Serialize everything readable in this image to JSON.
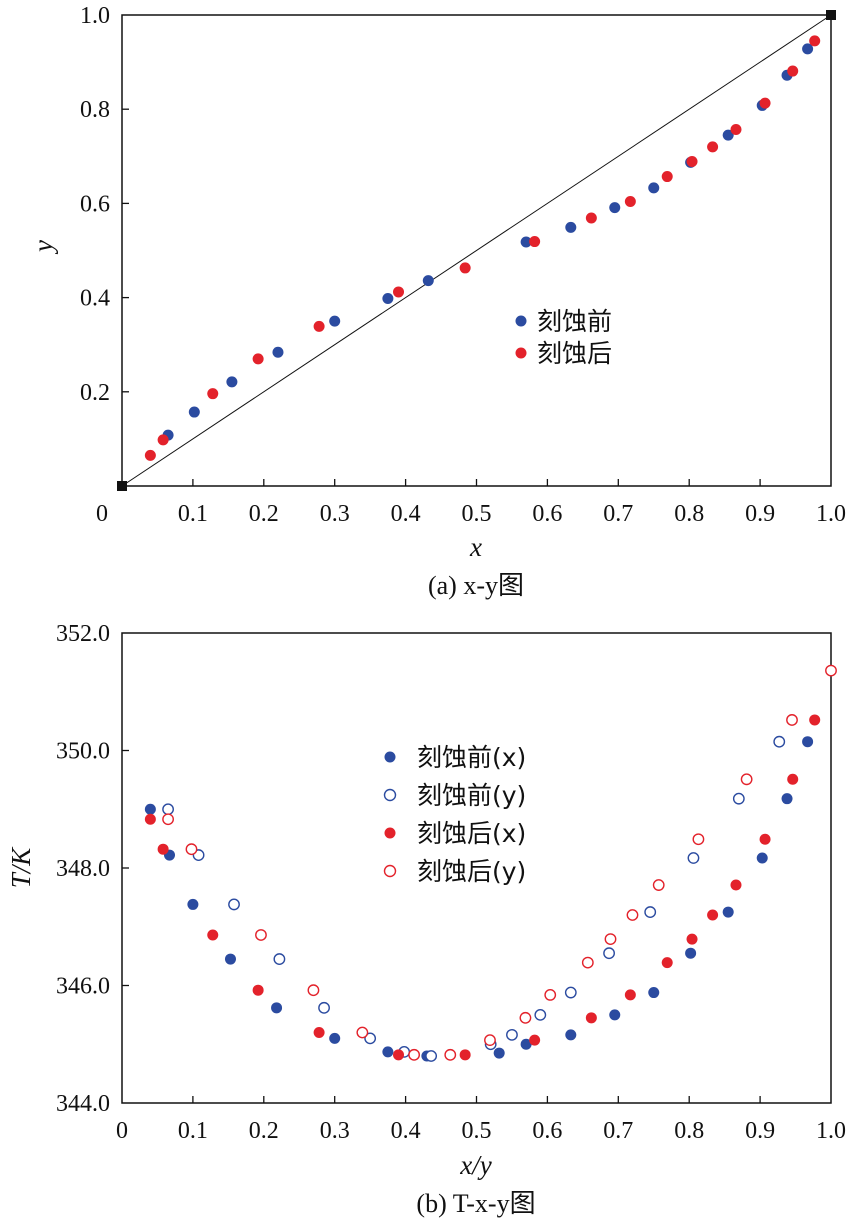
{
  "chart_data": [
    {
      "type": "scatter",
      "caption": "(a) x-y图",
      "xlabel": "x",
      "ylabel": "y",
      "xlim": [
        0,
        1
      ],
      "ylim": [
        0,
        1
      ],
      "xticks": [
        "0",
        "0.1",
        "0.2",
        "0.3",
        "0.4",
        "0.5",
        "0.6",
        "0.7",
        "0.8",
        "0.9",
        "1.0"
      ],
      "yticks": [
        "0.2",
        "0.4",
        "0.6",
        "0.8",
        "1.0"
      ],
      "legend_position": "center-right",
      "diagonal": [
        [
          0,
          0
        ],
        [
          1,
          1
        ]
      ],
      "series": [
        {
          "name": "刻蚀前",
          "color": "#2b4ba0",
          "marker": "filled-circle",
          "points": [
            [
              0.065,
              0.108
            ],
            [
              0.102,
              0.157
            ],
            [
              0.155,
              0.221
            ],
            [
              0.22,
              0.284
            ],
            [
              0.3,
              0.35
            ],
            [
              0.375,
              0.398
            ],
            [
              0.432,
              0.436
            ],
            [
              0.57,
              0.518
            ],
            [
              0.633,
              0.549
            ],
            [
              0.695,
              0.591
            ],
            [
              0.75,
              0.633
            ],
            [
              0.802,
              0.687
            ],
            [
              0.855,
              0.745
            ],
            [
              0.903,
              0.808
            ],
            [
              0.938,
              0.872
            ],
            [
              0.967,
              0.928
            ]
          ]
        },
        {
          "name": "刻蚀后",
          "color": "#e3222b",
          "marker": "filled-circle",
          "points": [
            [
              0.04,
              0.065
            ],
            [
              0.058,
              0.098
            ],
            [
              0.128,
              0.196
            ],
            [
              0.192,
              0.27
            ],
            [
              0.278,
              0.339
            ],
            [
              0.39,
              0.412
            ],
            [
              0.484,
              0.463
            ],
            [
              0.582,
              0.519
            ],
            [
              0.662,
              0.569
            ],
            [
              0.717,
              0.604
            ],
            [
              0.769,
              0.657
            ],
            [
              0.804,
              0.689
            ],
            [
              0.833,
              0.72
            ],
            [
              0.866,
              0.757
            ],
            [
              0.907,
              0.813
            ],
            [
              0.946,
              0.881
            ],
            [
              0.977,
              0.945
            ]
          ]
        }
      ]
    },
    {
      "type": "scatter",
      "caption": "(b) T-x-y图",
      "xlabel": "x/y",
      "ylabel": "T/K",
      "xlim": [
        0,
        1
      ],
      "ylim": [
        344,
        352
      ],
      "xticks": [
        "0",
        "0.1",
        "0.2",
        "0.3",
        "0.4",
        "0.5",
        "0.6",
        "0.7",
        "0.8",
        "0.9",
        "1.0"
      ],
      "yticks": [
        "344.0",
        "346.0",
        "348.0",
        "350.0",
        "352.0"
      ],
      "legend_position": "upper-center",
      "series": [
        {
          "name": "刻蚀前(x)",
          "color": "#2b4ba0",
          "marker": "filled-circle",
          "points": [
            [
              0.04,
              349.0
            ],
            [
              0.067,
              348.22
            ],
            [
              0.1,
              347.38
            ],
            [
              0.153,
              346.45
            ],
            [
              0.218,
              345.62
            ],
            [
              0.3,
              345.1
            ],
            [
              0.375,
              344.87
            ],
            [
              0.43,
              344.8
            ],
            [
              0.532,
              344.85
            ],
            [
              0.57,
              345.0
            ],
            [
              0.633,
              345.16
            ],
            [
              0.695,
              345.5
            ],
            [
              0.75,
              345.88
            ],
            [
              0.802,
              346.55
            ],
            [
              0.855,
              347.25
            ],
            [
              0.903,
              348.17
            ],
            [
              0.938,
              349.18
            ],
            [
              0.967,
              350.15
            ]
          ]
        },
        {
          "name": "刻蚀前(y)",
          "color": "#2b4ba0",
          "marker": "open-circle",
          "points": [
            [
              0.065,
              349.0
            ],
            [
              0.108,
              348.22
            ],
            [
              0.158,
              347.38
            ],
            [
              0.222,
              346.45
            ],
            [
              0.285,
              345.62
            ],
            [
              0.35,
              345.1
            ],
            [
              0.398,
              344.87
            ],
            [
              0.436,
              344.8
            ],
            [
              0.52,
              345.0
            ],
            [
              0.55,
              345.16
            ],
            [
              0.59,
              345.5
            ],
            [
              0.633,
              345.88
            ],
            [
              0.687,
              346.55
            ],
            [
              0.745,
              347.25
            ],
            [
              0.806,
              348.17
            ],
            [
              0.87,
              349.18
            ],
            [
              0.927,
              350.15
            ]
          ]
        },
        {
          "name": "刻蚀后(x)",
          "color": "#e3222b",
          "marker": "filled-circle",
          "points": [
            [
              0.04,
              348.83
            ],
            [
              0.058,
              348.32
            ],
            [
              0.128,
              346.86
            ],
            [
              0.192,
              345.92
            ],
            [
              0.278,
              345.2
            ],
            [
              0.39,
              344.82
            ],
            [
              0.484,
              344.82
            ],
            [
              0.582,
              345.07
            ],
            [
              0.662,
              345.45
            ],
            [
              0.717,
              345.84
            ],
            [
              0.769,
              346.39
            ],
            [
              0.804,
              346.79
            ],
            [
              0.833,
              347.2
            ],
            [
              0.866,
              347.71
            ],
            [
              0.907,
              348.49
            ],
            [
              0.946,
              349.51
            ],
            [
              0.977,
              350.52
            ]
          ]
        },
        {
          "name": "刻蚀后(y)",
          "color": "#e3222b",
          "marker": "open-circle",
          "points": [
            [
              0.065,
              348.83
            ],
            [
              0.098,
              348.32
            ],
            [
              0.196,
              346.86
            ],
            [
              0.27,
              345.92
            ],
            [
              0.339,
              345.2
            ],
            [
              0.412,
              344.82
            ],
            [
              0.463,
              344.82
            ],
            [
              0.519,
              345.07
            ],
            [
              0.569,
              345.45
            ],
            [
              0.604,
              345.84
            ],
            [
              0.657,
              346.39
            ],
            [
              0.689,
              346.79
            ],
            [
              0.72,
              347.2
            ],
            [
              0.757,
              347.71
            ],
            [
              0.813,
              348.49
            ],
            [
              0.881,
              349.51
            ],
            [
              0.945,
              350.52
            ],
            [
              1.0,
              351.36
            ]
          ]
        }
      ]
    }
  ]
}
